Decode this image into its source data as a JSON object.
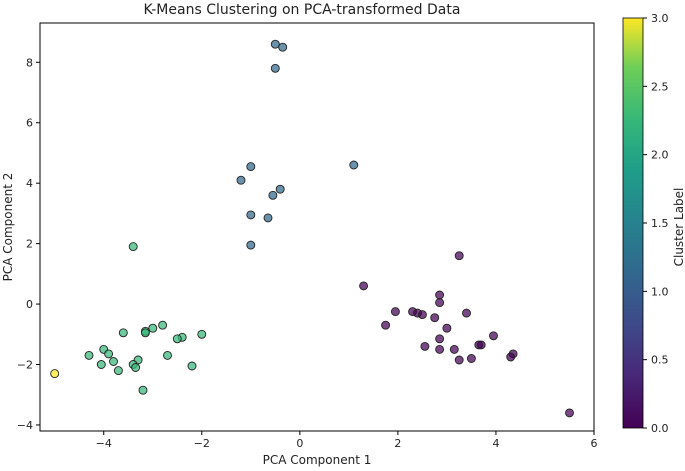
{
  "chart_data": {
    "type": "scatter",
    "title": "K-Means Clustering on PCA-transformed Data",
    "xlabel": "PCA Component 1",
    "ylabel": "PCA Component 2",
    "xlim": [
      -5.3,
      6.0
    ],
    "ylim": [
      -4.2,
      9.3
    ],
    "xticks": [
      -4,
      -2,
      0,
      2,
      4,
      6
    ],
    "yticks": [
      -4,
      -2,
      0,
      2,
      4,
      6,
      8
    ],
    "grid": false,
    "colormap": "viridis",
    "colorbar": {
      "label": "Cluster Label",
      "range": [
        0.0,
        3.0
      ],
      "ticks": [
        "0.0",
        "0.5",
        "1.0",
        "1.5",
        "2.0",
        "2.5",
        "3.0"
      ]
    },
    "cluster_colors": [
      "#440154",
      "#31688e",
      "#35b779",
      "#fde725"
    ],
    "points": [
      {
        "x": -0.5,
        "y": 8.6,
        "c": 1
      },
      {
        "x": -0.35,
        "y": 8.5,
        "c": 1
      },
      {
        "x": -0.5,
        "y": 7.8,
        "c": 1
      },
      {
        "x": 1.1,
        "y": 4.6,
        "c": 1
      },
      {
        "x": -1.0,
        "y": 4.55,
        "c": 1
      },
      {
        "x": -1.2,
        "y": 4.1,
        "c": 1
      },
      {
        "x": -0.4,
        "y": 3.8,
        "c": 1
      },
      {
        "x": -0.55,
        "y": 3.6,
        "c": 1
      },
      {
        "x": -1.0,
        "y": 2.95,
        "c": 1
      },
      {
        "x": -0.65,
        "y": 2.85,
        "c": 1
      },
      {
        "x": -1.0,
        "y": 1.95,
        "c": 1
      },
      {
        "x": -3.4,
        "y": 1.9,
        "c": 2
      },
      {
        "x": -2.8,
        "y": -0.7,
        "c": 2
      },
      {
        "x": -3.0,
        "y": -0.8,
        "c": 2
      },
      {
        "x": -3.15,
        "y": -0.9,
        "c": 2
      },
      {
        "x": -3.15,
        "y": -0.95,
        "c": 2
      },
      {
        "x": -3.6,
        "y": -0.95,
        "c": 2
      },
      {
        "x": -2.0,
        "y": -1.0,
        "c": 2
      },
      {
        "x": -2.4,
        "y": -1.1,
        "c": 2
      },
      {
        "x": -2.5,
        "y": -1.15,
        "c": 2
      },
      {
        "x": -4.0,
        "y": -1.5,
        "c": 2
      },
      {
        "x": -3.9,
        "y": -1.65,
        "c": 2
      },
      {
        "x": -4.3,
        "y": -1.7,
        "c": 2
      },
      {
        "x": -2.7,
        "y": -1.7,
        "c": 2
      },
      {
        "x": -3.3,
        "y": -1.85,
        "c": 2
      },
      {
        "x": -3.8,
        "y": -1.9,
        "c": 2
      },
      {
        "x": -4.05,
        "y": -2.0,
        "c": 2
      },
      {
        "x": -3.4,
        "y": -2.0,
        "c": 2
      },
      {
        "x": -2.2,
        "y": -2.05,
        "c": 2
      },
      {
        "x": -3.35,
        "y": -2.1,
        "c": 2
      },
      {
        "x": -3.7,
        "y": -2.2,
        "c": 2
      },
      {
        "x": -3.2,
        "y": -2.85,
        "c": 2
      },
      {
        "x": -5.0,
        "y": -2.3,
        "c": 3
      },
      {
        "x": 3.25,
        "y": 1.6,
        "c": 0
      },
      {
        "x": 1.3,
        "y": 0.6,
        "c": 0
      },
      {
        "x": 2.85,
        "y": 0.3,
        "c": 0
      },
      {
        "x": 2.85,
        "y": 0.05,
        "c": 0
      },
      {
        "x": 1.95,
        "y": -0.25,
        "c": 0
      },
      {
        "x": 2.3,
        "y": -0.25,
        "c": 0
      },
      {
        "x": 2.4,
        "y": -0.3,
        "c": 0
      },
      {
        "x": 2.5,
        "y": -0.35,
        "c": 0
      },
      {
        "x": 3.4,
        "y": -0.3,
        "c": 0
      },
      {
        "x": 2.75,
        "y": -0.45,
        "c": 0
      },
      {
        "x": 1.75,
        "y": -0.7,
        "c": 0
      },
      {
        "x": 3.0,
        "y": -0.8,
        "c": 0
      },
      {
        "x": 3.95,
        "y": -1.05,
        "c": 0
      },
      {
        "x": 2.85,
        "y": -1.15,
        "c": 0
      },
      {
        "x": 3.65,
        "y": -1.35,
        "c": 0
      },
      {
        "x": 3.7,
        "y": -1.35,
        "c": 0
      },
      {
        "x": 2.55,
        "y": -1.4,
        "c": 0
      },
      {
        "x": 2.85,
        "y": -1.5,
        "c": 0
      },
      {
        "x": 3.15,
        "y": -1.5,
        "c": 0
      },
      {
        "x": 4.35,
        "y": -1.65,
        "c": 0
      },
      {
        "x": 4.3,
        "y": -1.75,
        "c": 0
      },
      {
        "x": 3.5,
        "y": -1.8,
        "c": 0
      },
      {
        "x": 3.25,
        "y": -1.85,
        "c": 0
      },
      {
        "x": 5.5,
        "y": -3.6,
        "c": 0
      }
    ]
  }
}
